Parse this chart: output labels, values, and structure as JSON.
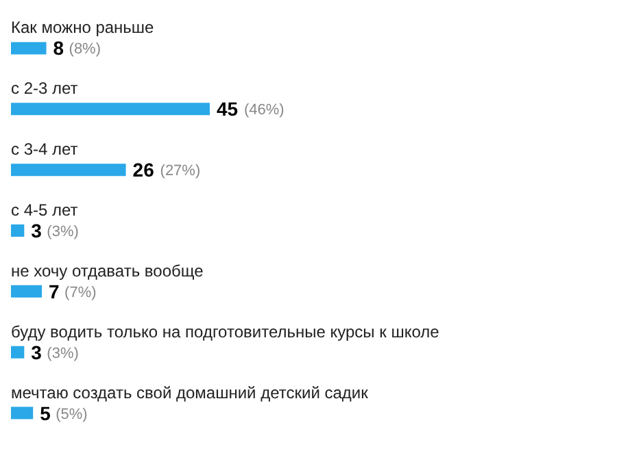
{
  "chart_data": {
    "type": "bar",
    "orientation": "horizontal",
    "data_labels": true,
    "categories": [
      "Как можно раньше",
      "с 2-3 лет",
      "с 3-4 лет",
      "с 4-5 лет",
      "не хочу отдавать вообще",
      "буду водить только на подготовительные курсы к школе",
      "мечтаю создать свой домашний детский садик"
    ],
    "values": [
      8,
      45,
      26,
      3,
      7,
      3,
      5
    ],
    "annotations": [
      {
        "text": "(8%)",
        "x": 8,
        "y": "Как можно раньше"
      },
      {
        "text": "(46%)",
        "x": 45,
        "y": "с 2-3 лет"
      },
      {
        "text": "(27%)",
        "x": 26,
        "y": "с 3-4 лет"
      },
      {
        "text": "(3%)",
        "x": 3,
        "y": "с 4-5 лет"
      },
      {
        "text": "(7%)",
        "x": 7,
        "y": "не хочу отдавать вообще"
      },
      {
        "text": "(3%)",
        "x": 3,
        "y": "буду водить только на подготовительные курсы к школе"
      },
      {
        "text": "(5%)",
        "x": 5,
        "y": "мечтаю создать свой домашний детский садик"
      }
    ],
    "color": "#2aa8e8"
  }
}
